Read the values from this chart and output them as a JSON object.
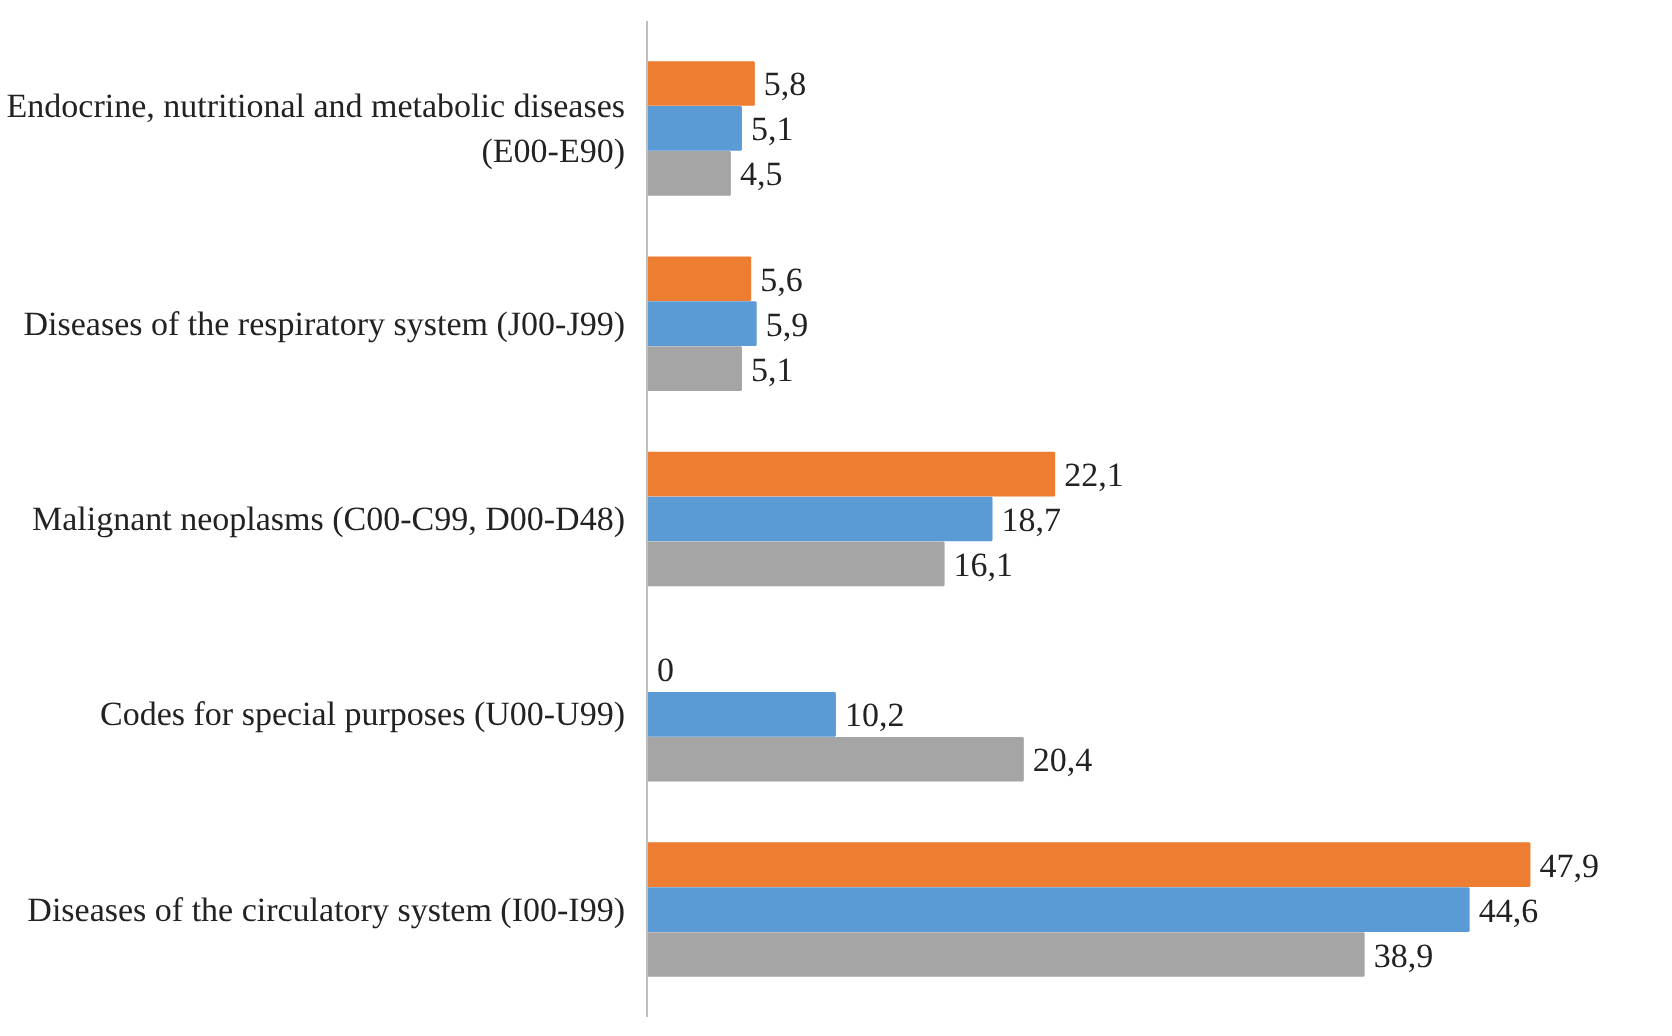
{
  "chart_data": {
    "type": "bar",
    "orientation": "horizontal",
    "categories": [
      "Endocrine, nutritional and metabolic diseases\n(E00-E90)",
      "Diseases of the respiratory system (J00-J99)",
      "Malignant neoplasms (C00-C99, D00-D48)",
      "Codes for special purposes (U00-U99)",
      "Diseases of the circulatory system (I00-I99)"
    ],
    "series": [
      {
        "color": "#ed7d31",
        "values": [
          5.8,
          5.6,
          22.1,
          0,
          47.9
        ],
        "value_labels": [
          "5,8",
          "5,6",
          "22,1",
          "0",
          "47,9"
        ]
      },
      {
        "color": "#5b9bd5",
        "values": [
          5.1,
          5.9,
          18.7,
          10.2,
          44.6
        ],
        "value_labels": [
          "5,1",
          "5,9",
          "18,7",
          "10,2",
          "44,6"
        ]
      },
      {
        "color": "#a5a5a5",
        "values": [
          4.5,
          5.1,
          16.1,
          20.4,
          38.9
        ],
        "value_labels": [
          "4,5",
          "5,1",
          "16,1",
          "20,4",
          "38,9"
        ]
      }
    ],
    "grid": false,
    "tick_labels": "y"
  }
}
